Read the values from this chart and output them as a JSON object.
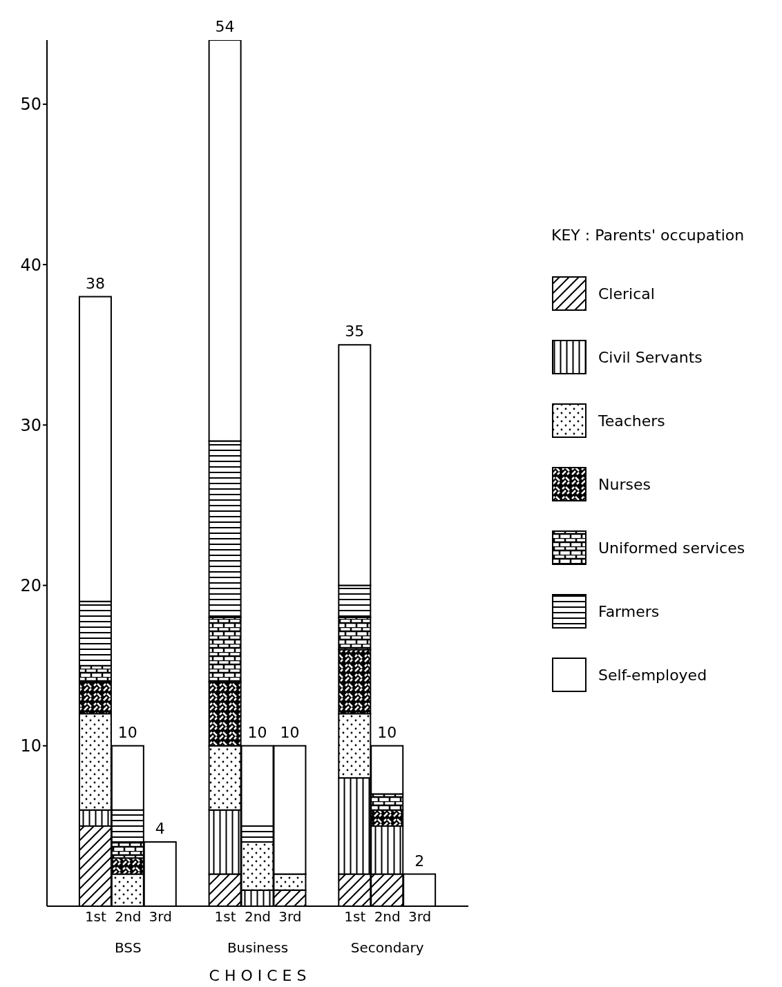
{
  "chart_data": {
    "type": "bar",
    "stacked": true,
    "xlabel": "C H O I C E S",
    "legend_title": "KEY : Parents' occupation",
    "legend": "right",
    "grid": false,
    "categories": [
      "1st",
      "2nd",
      "3rd",
      "1st",
      "2nd",
      "3rd",
      "1st",
      "2nd",
      "3rd"
    ],
    "annotations": [
      "BSS",
      "Business",
      "Secondary"
    ],
    "ylim": [
      0,
      54
    ],
    "yticks": [
      10,
      20,
      30,
      40,
      50
    ],
    "totals": [
      "38",
      "10",
      "4",
      "54",
      "10",
      "10",
      "35",
      "10",
      "2"
    ],
    "series": [
      {
        "name": "Clerical",
        "color": "#000000",
        "values": [
          5,
          0,
          0,
          2,
          0,
          1,
          2,
          2,
          0
        ]
      },
      {
        "name": "Civil Servants",
        "color": "#000000",
        "values": [
          1,
          0,
          0,
          4,
          1,
          0,
          6,
          3,
          0
        ]
      },
      {
        "name": "Teachers",
        "color": "#000000",
        "values": [
          6,
          2,
          0,
          4,
          3,
          1,
          4,
          0,
          0
        ]
      },
      {
        "name": "Nurses",
        "color": "#000000",
        "values": [
          2,
          1,
          0,
          4,
          0,
          0,
          4,
          1,
          0
        ]
      },
      {
        "name": "Uniformed services",
        "color": "#000000",
        "values": [
          1,
          1,
          0,
          4,
          0,
          0,
          2,
          1,
          0
        ]
      },
      {
        "name": "Farmers",
        "color": "#000000",
        "values": [
          4,
          2,
          0,
          11,
          1,
          0,
          2,
          0,
          0
        ]
      },
      {
        "name": "Self-employed",
        "color": "#ffffff",
        "values": [
          19,
          4,
          4,
          25,
          5,
          8,
          15,
          3,
          2
        ]
      }
    ]
  }
}
